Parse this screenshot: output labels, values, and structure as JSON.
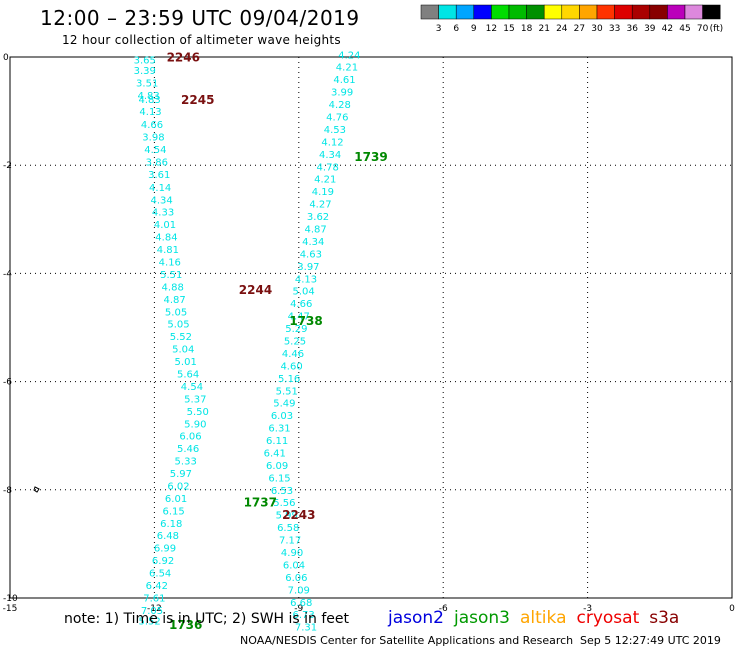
{
  "header": {
    "title": "12:00 – 23:59 UTC 09/04/2019",
    "subtitle": "12 hour collection of altimeter wave heights"
  },
  "color_scale": {
    "labels": [
      "3",
      "6",
      "9",
      "12",
      "15",
      "18",
      "21",
      "24",
      "27",
      "30",
      "33",
      "36",
      "39",
      "42",
      "45",
      "70"
    ],
    "unit": "(ft)",
    "colors": [
      "#808080",
      "#00e5e5",
      "#00a5ff",
      "#0000ff",
      "#00dd00",
      "#00bb00",
      "#009000",
      "#ffff00",
      "#ffd700",
      "#ffa500",
      "#ff3300",
      "#dd0000",
      "#aa0000",
      "#880000",
      "#bb00bb",
      "#dd88dd",
      "#000000"
    ]
  },
  "chart_data": {
    "type": "scatter",
    "xlim": [
      -15,
      0
    ],
    "ylim": [
      -10,
      0
    ],
    "x_ticks": [
      "-15",
      "-12",
      "-9",
      "-6",
      "-3",
      "0"
    ],
    "y_ticks": [
      "0",
      "-2",
      "-4",
      "-6",
      "-8",
      "-10"
    ],
    "grid": true,
    "tracks": [
      {
        "id": "track1",
        "color": "#00e5e5",
        "points": [
          {
            "x": -12.2,
            "y": -0.05,
            "v": "3.65"
          },
          {
            "x": -12.2,
            "y": -0.24,
            "v": "3.39"
          },
          {
            "x": -12.15,
            "y": -0.47,
            "v": "3.51"
          },
          {
            "x": -12.12,
            "y": -0.7,
            "v": "4.83"
          },
          {
            "x": -12.1,
            "y": -0.78,
            "v": "4.83"
          },
          {
            "x": -12.08,
            "y": -1.0,
            "v": "4.13"
          },
          {
            "x": -12.05,
            "y": -1.24,
            "v": "4.66"
          },
          {
            "x": -12.02,
            "y": -1.47,
            "v": "3.98"
          },
          {
            "x": -11.98,
            "y": -1.7,
            "v": "4.54"
          },
          {
            "x": -11.95,
            "y": -1.93,
            "v": "3.86"
          },
          {
            "x": -11.9,
            "y": -2.16,
            "v": "3.61"
          },
          {
            "x": -11.88,
            "y": -2.4,
            "v": "4.14"
          },
          {
            "x": -11.85,
            "y": -2.63,
            "v": "4.34"
          },
          {
            "x": -11.82,
            "y": -2.86,
            "v": "4.33"
          },
          {
            "x": -11.78,
            "y": -3.09,
            "v": "4.01"
          },
          {
            "x": -11.75,
            "y": -3.32,
            "v": "4.84"
          },
          {
            "x": -11.72,
            "y": -3.55,
            "v": "4.81"
          },
          {
            "x": -11.68,
            "y": -3.78,
            "v": "4.16"
          },
          {
            "x": -11.65,
            "y": -4.01,
            "v": "5.51"
          },
          {
            "x": -11.62,
            "y": -4.24,
            "v": "4.88"
          },
          {
            "x": -11.58,
            "y": -4.47,
            "v": "4.87"
          },
          {
            "x": -11.55,
            "y": -4.7,
            "v": "5.05"
          },
          {
            "x": -11.5,
            "y": -4.93,
            "v": "5.05"
          },
          {
            "x": -11.45,
            "y": -5.16,
            "v": "5.52"
          },
          {
            "x": -11.4,
            "y": -5.39,
            "v": "5.04"
          },
          {
            "x": -11.35,
            "y": -5.62,
            "v": "5.01"
          },
          {
            "x": -11.3,
            "y": -5.85,
            "v": "5.64"
          },
          {
            "x": -11.22,
            "y": -6.08,
            "v": "4.54"
          },
          {
            "x": -11.15,
            "y": -6.31,
            "v": "5.37"
          },
          {
            "x": -11.1,
            "y": -6.54,
            "v": "5.50"
          },
          {
            "x": -11.15,
            "y": -6.77,
            "v": "5.90"
          },
          {
            "x": -11.25,
            "y": -7.0,
            "v": "6.06"
          },
          {
            "x": -11.3,
            "y": -7.23,
            "v": "5.46"
          },
          {
            "x": -11.35,
            "y": -7.46,
            "v": "5.33"
          },
          {
            "x": -11.45,
            "y": -7.69,
            "v": "5.97"
          },
          {
            "x": -11.5,
            "y": -7.92,
            "v": "6.02"
          },
          {
            "x": -11.55,
            "y": -8.15,
            "v": "6.01"
          },
          {
            "x": -11.6,
            "y": -8.38,
            "v": "6.15"
          },
          {
            "x": -11.65,
            "y": -8.61,
            "v": "6.18"
          },
          {
            "x": -11.72,
            "y": -8.84,
            "v": "6.48"
          },
          {
            "x": -11.78,
            "y": -9.07,
            "v": "6.99"
          },
          {
            "x": -11.82,
            "y": -9.3,
            "v": "6.92"
          },
          {
            "x": -11.88,
            "y": -9.53,
            "v": "6.54"
          },
          {
            "x": -11.95,
            "y": -9.76,
            "v": "6.42"
          },
          {
            "x": -12.0,
            "y": -9.99,
            "v": "7.61"
          },
          {
            "x": -12.05,
            "y": -10.22,
            "v": "7.05"
          },
          {
            "x": -12.1,
            "y": -10.42,
            "v": "5.52"
          }
        ]
      },
      {
        "id": "track2",
        "color": "#00e5e5",
        "points": [
          {
            "x": -7.95,
            "y": 0.05,
            "v": "4.24"
          },
          {
            "x": -8.0,
            "y": -0.18,
            "v": "4.21"
          },
          {
            "x": -8.05,
            "y": -0.41,
            "v": "4.61"
          },
          {
            "x": -8.1,
            "y": -0.64,
            "v": "3.99"
          },
          {
            "x": -8.15,
            "y": -0.87,
            "v": "4.28"
          },
          {
            "x": -8.2,
            "y": -1.1,
            "v": "4.76"
          },
          {
            "x": -8.25,
            "y": -1.33,
            "v": "4.53"
          },
          {
            "x": -8.3,
            "y": -1.56,
            "v": "4.12"
          },
          {
            "x": -8.35,
            "y": -1.79,
            "v": "4.34"
          },
          {
            "x": -8.4,
            "y": -2.02,
            "v": "4.78"
          },
          {
            "x": -8.45,
            "y": -2.25,
            "v": "4.21"
          },
          {
            "x": -8.5,
            "y": -2.48,
            "v": "4.19"
          },
          {
            "x": -8.55,
            "y": -2.71,
            "v": "4.27"
          },
          {
            "x": -8.6,
            "y": -2.94,
            "v": "3.62"
          },
          {
            "x": -8.65,
            "y": -3.17,
            "v": "4.87"
          },
          {
            "x": -8.7,
            "y": -3.4,
            "v": "4.34"
          },
          {
            "x": -8.75,
            "y": -3.63,
            "v": "4.63"
          },
          {
            "x": -8.8,
            "y": -3.86,
            "v": "3.97"
          },
          {
            "x": -8.85,
            "y": -4.09,
            "v": "4.13"
          },
          {
            "x": -8.9,
            "y": -4.32,
            "v": "5.04"
          },
          {
            "x": -8.95,
            "y": -4.55,
            "v": "4.66"
          },
          {
            "x": -9.0,
            "y": -4.78,
            "v": "4.47"
          },
          {
            "x": -9.05,
            "y": -5.01,
            "v": "5.29"
          },
          {
            "x": -9.08,
            "y": -5.24,
            "v": "5.25"
          },
          {
            "x": -9.12,
            "y": -5.47,
            "v": "4.46"
          },
          {
            "x": -9.15,
            "y": -5.7,
            "v": "4.60"
          },
          {
            "x": -9.2,
            "y": -5.93,
            "v": "5.16"
          },
          {
            "x": -9.25,
            "y": -6.16,
            "v": "5.51"
          },
          {
            "x": -9.3,
            "y": -6.39,
            "v": "5.49"
          },
          {
            "x": -9.35,
            "y": -6.62,
            "v": "6.03"
          },
          {
            "x": -9.4,
            "y": -6.85,
            "v": "6.31"
          },
          {
            "x": -9.45,
            "y": -7.08,
            "v": "6.11"
          },
          {
            "x": -9.5,
            "y": -7.31,
            "v": "6.41"
          },
          {
            "x": -9.45,
            "y": -7.54,
            "v": "6.09"
          },
          {
            "x": -9.4,
            "y": -7.77,
            "v": "6.15"
          },
          {
            "x": -9.35,
            "y": -8.0,
            "v": "6.53"
          },
          {
            "x": -9.3,
            "y": -8.23,
            "v": "5.56"
          },
          {
            "x": -9.25,
            "y": -8.46,
            "v": "5.99"
          },
          {
            "x": -9.22,
            "y": -8.69,
            "v": "6.58"
          },
          {
            "x": -9.18,
            "y": -8.92,
            "v": "7.17"
          },
          {
            "x": -9.14,
            "y": -9.15,
            "v": "4.90"
          },
          {
            "x": -9.1,
            "y": -9.38,
            "v": "6.04"
          },
          {
            "x": -9.05,
            "y": -9.61,
            "v": "6.06"
          },
          {
            "x": -9.0,
            "y": -9.84,
            "v": "7.09"
          },
          {
            "x": -8.95,
            "y": -10.07,
            "v": "6.68"
          },
          {
            "x": -8.9,
            "y": -10.3,
            "v": "6.73"
          },
          {
            "x": -8.85,
            "y": -10.53,
            "v": "7.31"
          }
        ]
      }
    ],
    "time_labels": [
      {
        "x": -11.4,
        "y": 0.01,
        "v": "2246",
        "color": "#7a1010"
      },
      {
        "x": -11.1,
        "y": -0.78,
        "v": "2245",
        "color": "#7a1010"
      },
      {
        "x": -7.5,
        "y": -1.83,
        "v": "1739",
        "color": "#008800"
      },
      {
        "x": -9.9,
        "y": -4.29,
        "v": "2244",
        "color": "#7a1010"
      },
      {
        "x": -8.85,
        "y": -4.86,
        "v": "1738",
        "color": "#008800"
      },
      {
        "x": -9.8,
        "y": -8.22,
        "v": "1737",
        "color": "#008800"
      },
      {
        "x": -9.0,
        "y": -8.45,
        "v": "2243",
        "color": "#7a1010"
      },
      {
        "x": -11.35,
        "y": -10.48,
        "v": "1736",
        "color": "#008800"
      }
    ]
  },
  "footer": {
    "note": "note:  1) Time is in UTC;  2) SWH is in feet",
    "missions": [
      {
        "label": "jason2",
        "color": "#0000dd"
      },
      {
        "label": "jason3",
        "color": "#009900"
      },
      {
        "label": "altika",
        "color": "#ffa500"
      },
      {
        "label": "cryosat",
        "color": "#ee0000"
      },
      {
        "label": "s3a",
        "color": "#880000"
      }
    ],
    "credit": "NOAA/NESDIS Center for Satellite Applications and Research",
    "timestamp": "Sep  5 12:27:49 UTC 2019"
  }
}
